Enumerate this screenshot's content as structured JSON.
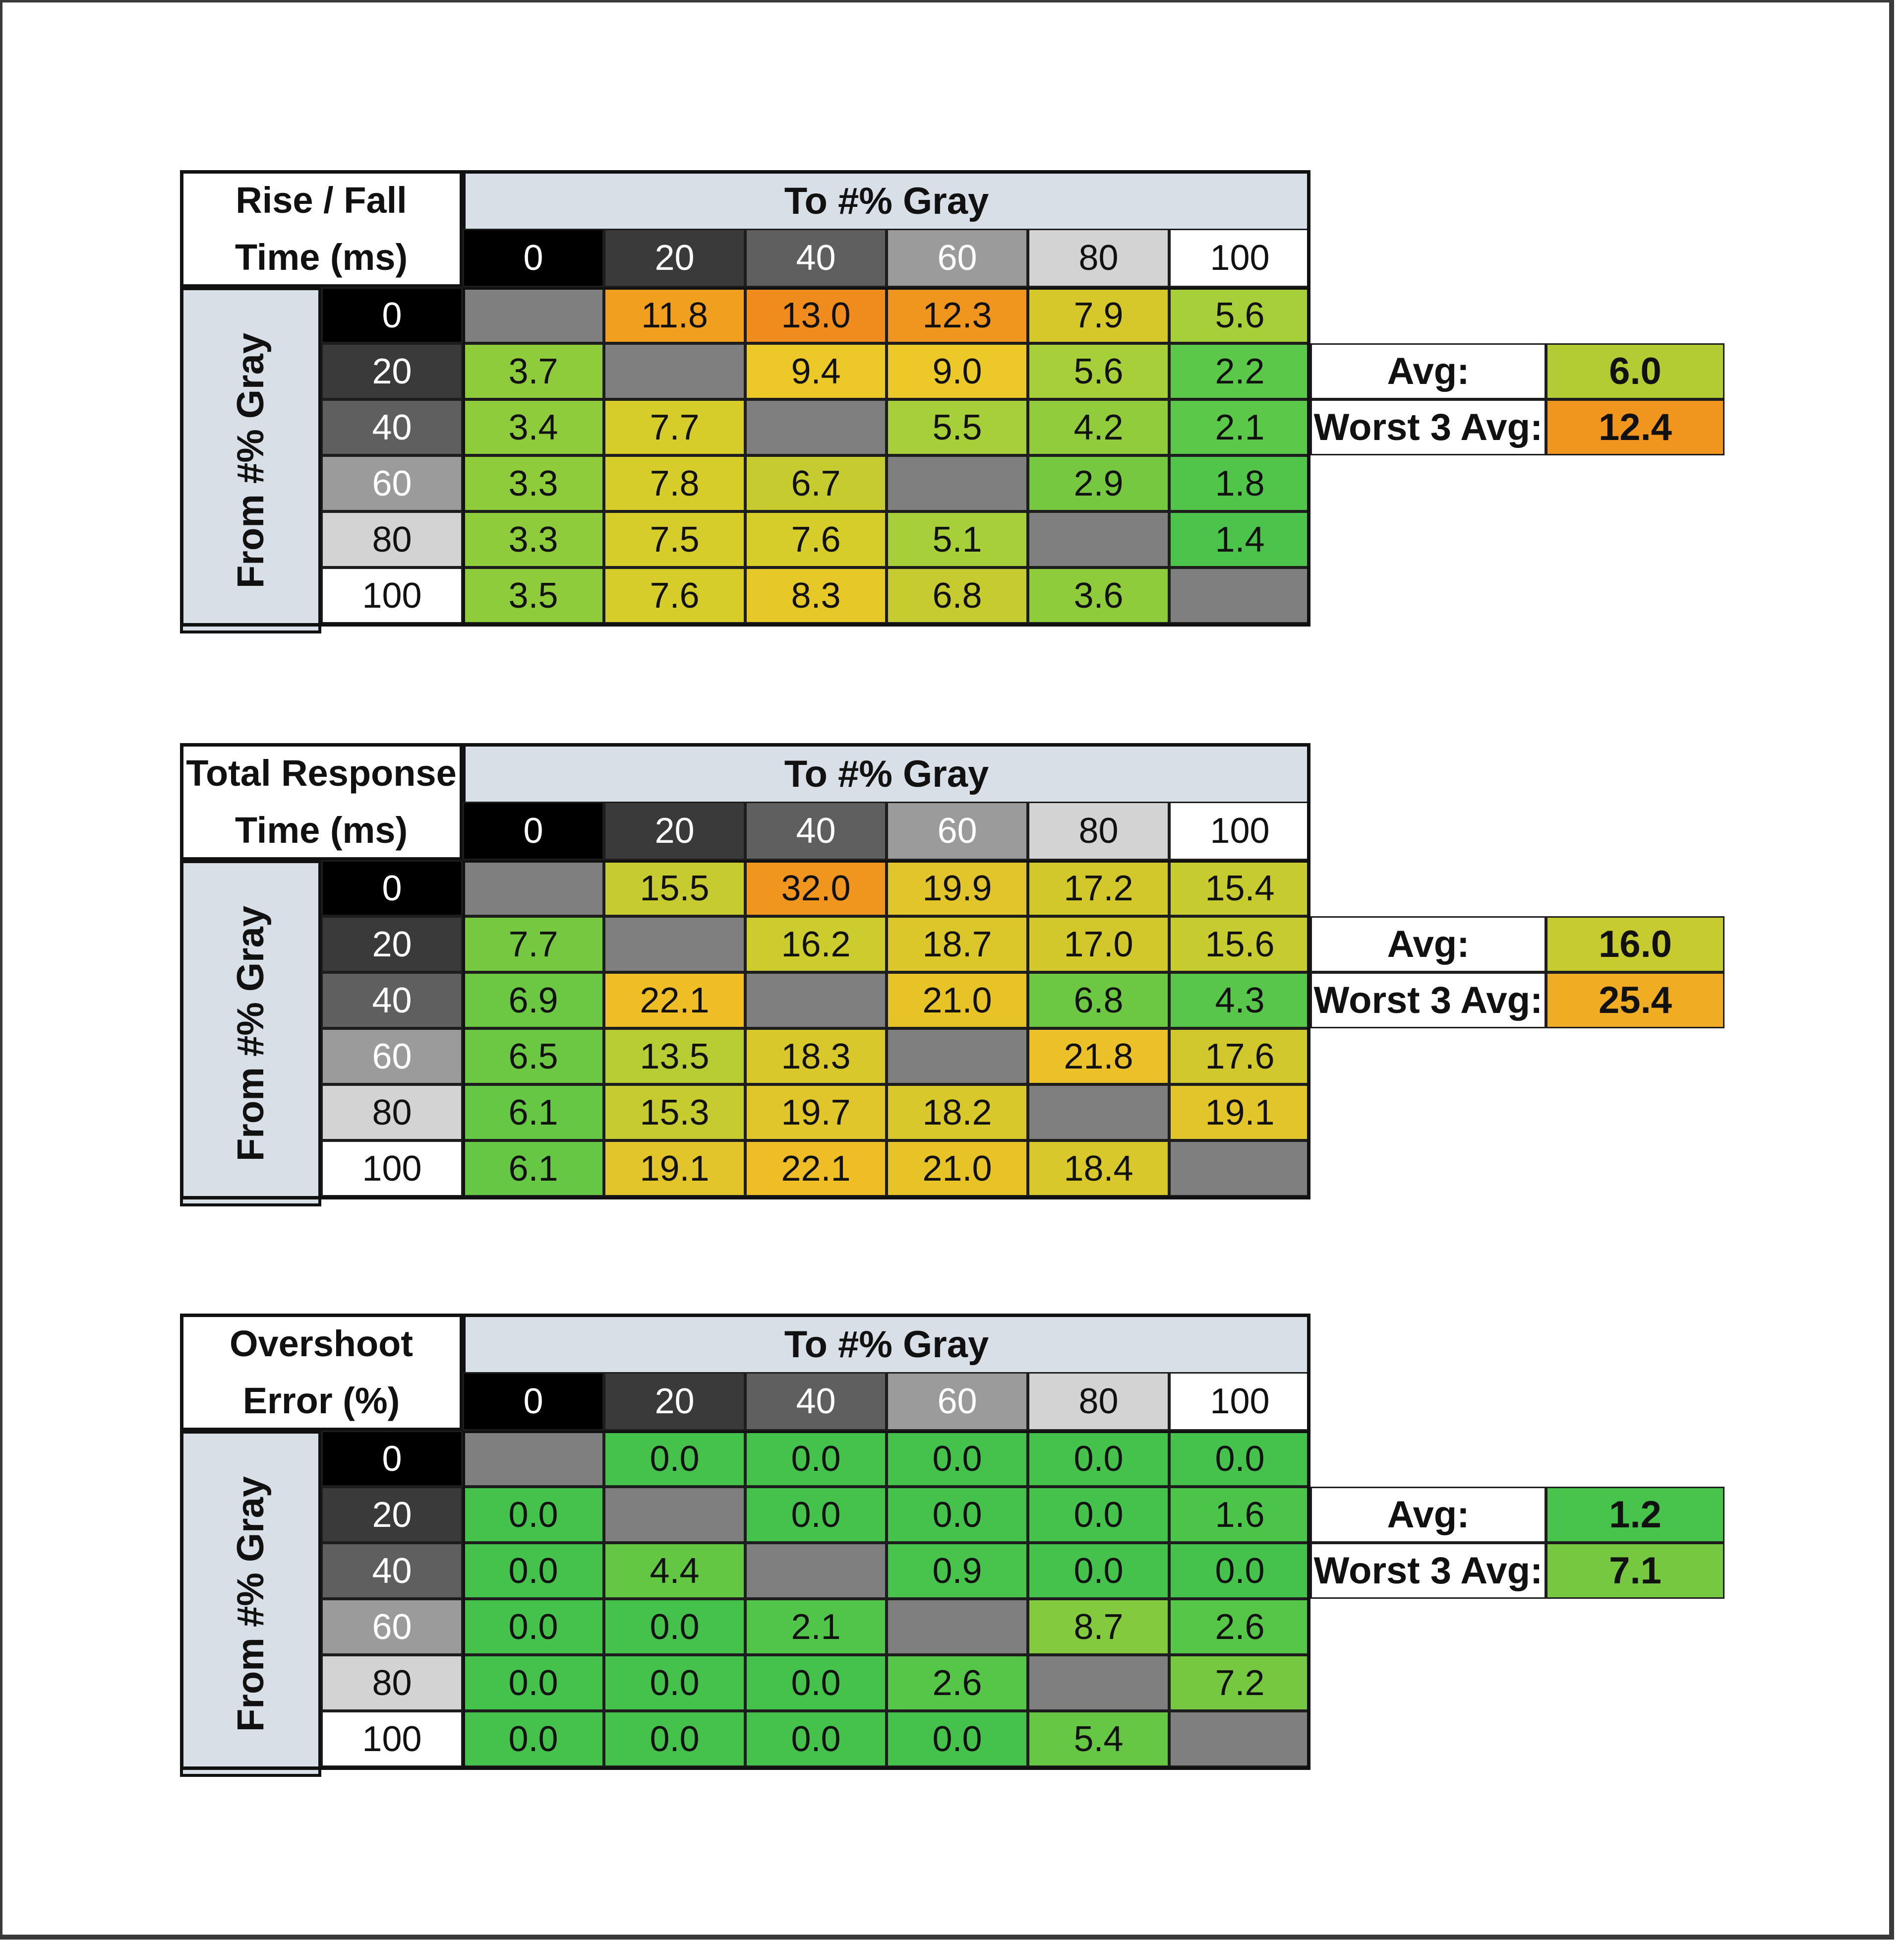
{
  "colors": {
    "header_bg": "#d9dfe6",
    "diagonal": "#7f7f7f",
    "gray_levels": {
      "0": "#000000",
      "20": "#3a3a3a",
      "40": "#5f5f5f",
      "60": "#9b9b9b",
      "80": "#d3d3d3",
      "100": "#ffffff"
    }
  },
  "chart_data": [
    {
      "type": "table",
      "title_lines": [
        "Rise / Fall",
        "Time (ms)"
      ],
      "column_header": "To #% Gray",
      "row_header": "From #% Gray",
      "columns": [
        "0",
        "20",
        "40",
        "60",
        "80",
        "100"
      ],
      "rows": [
        "0",
        "20",
        "40",
        "60",
        "80",
        "100"
      ],
      "values": [
        [
          null,
          11.8,
          13.0,
          12.3,
          7.9,
          5.6
        ],
        [
          3.7,
          null,
          9.4,
          9.0,
          5.6,
          2.2
        ],
        [
          3.4,
          7.7,
          null,
          5.5,
          4.2,
          2.1
        ],
        [
          3.3,
          7.8,
          6.7,
          null,
          2.9,
          1.8
        ],
        [
          3.3,
          7.5,
          7.6,
          5.1,
          null,
          1.4
        ],
        [
          3.5,
          7.6,
          8.3,
          6.8,
          3.6,
          null
        ]
      ],
      "cell_text": [
        [
          "",
          "11.8",
          "13.0",
          "12.3",
          "7.9",
          "5.6"
        ],
        [
          "3.7",
          "",
          "9.4",
          "9.0",
          "5.6",
          "2.2"
        ],
        [
          "3.4",
          "7.7",
          "",
          "5.5",
          "4.2",
          "2.1"
        ],
        [
          "3.3",
          "7.8",
          "6.7",
          "",
          "2.9",
          "1.8"
        ],
        [
          "3.3",
          "7.5",
          "7.6",
          "5.1",
          "",
          "1.4"
        ],
        [
          "3.5",
          "7.6",
          "8.3",
          "6.8",
          "3.6",
          ""
        ]
      ],
      "cell_colors": [
        [
          "#7f7f7f",
          "#f0a01e",
          "#f08c1e",
          "#f0961e",
          "#d6c82a",
          "#a6cf3a"
        ],
        [
          "#8fcc3c",
          "#7f7f7f",
          "#ecc828",
          "#ecc828",
          "#a6cf3a",
          "#5cc84a"
        ],
        [
          "#8fcc3c",
          "#d6cc2a",
          "#7f7f7f",
          "#a6cf3a",
          "#90cc3c",
          "#5cc84a"
        ],
        [
          "#8fcc3c",
          "#d6cc2a",
          "#c6cc30",
          "#7f7f7f",
          "#76c840",
          "#50c54a"
        ],
        [
          "#8fcc3c",
          "#d6cc2a",
          "#d6cc2a",
          "#a6cf3a",
          "#7f7f7f",
          "#4cc44c"
        ],
        [
          "#8fcc3c",
          "#d6cc2a",
          "#e6c828",
          "#c6cc30",
          "#8fcc3c",
          "#7f7f7f"
        ]
      ],
      "summary": [
        {
          "label": "Avg:",
          "value": "6.0",
          "color": "#b4cc34"
        },
        {
          "label": "Worst 3 Avg:",
          "value": "12.4",
          "color": "#f0961e"
        }
      ]
    },
    {
      "type": "table",
      "title_lines": [
        "Total Response",
        "Time (ms)"
      ],
      "column_header": "To #% Gray",
      "row_header": "From #% Gray",
      "columns": [
        "0",
        "20",
        "40",
        "60",
        "80",
        "100"
      ],
      "rows": [
        "0",
        "20",
        "40",
        "60",
        "80",
        "100"
      ],
      "values": [
        [
          null,
          15.5,
          32.0,
          19.9,
          17.2,
          15.4
        ],
        [
          7.7,
          null,
          16.2,
          18.7,
          17.0,
          15.6
        ],
        [
          6.9,
          22.1,
          null,
          21.0,
          6.8,
          4.3
        ],
        [
          6.5,
          13.5,
          18.3,
          null,
          21.8,
          17.6
        ],
        [
          6.1,
          15.3,
          19.7,
          18.2,
          null,
          19.1
        ],
        [
          6.1,
          19.1,
          22.1,
          21.0,
          18.4,
          null
        ]
      ],
      "cell_text": [
        [
          "",
          "15.5",
          "32.0",
          "19.9",
          "17.2",
          "15.4"
        ],
        [
          "7.7",
          "",
          "16.2",
          "18.7",
          "17.0",
          "15.6"
        ],
        [
          "6.9",
          "22.1",
          "",
          "21.0",
          "6.8",
          "4.3"
        ],
        [
          "6.5",
          "13.5",
          "18.3",
          "",
          "21.8",
          "17.6"
        ],
        [
          "6.1",
          "15.3",
          "19.7",
          "18.2",
          "",
          "19.1"
        ],
        [
          "6.1",
          "19.1",
          "22.1",
          "21.0",
          "18.4",
          ""
        ]
      ],
      "cell_colors": [
        [
          "#7f7f7f",
          "#c6cc30",
          "#f0961e",
          "#e2c52a",
          "#d2c82c",
          "#c6cc30"
        ],
        [
          "#76c840",
          "#7f7f7f",
          "#cccc2e",
          "#dcc72a",
          "#d2c82c",
          "#c6cc30"
        ],
        [
          "#6cc842",
          "#efbe26",
          "#7f7f7f",
          "#e8c328",
          "#6cc842",
          "#58c64a"
        ],
        [
          "#6cc842",
          "#b8cc34",
          "#d8c82c",
          "#7f7f7f",
          "#ecc028",
          "#d0c82c"
        ],
        [
          "#66c744",
          "#c6cc30",
          "#e0c62a",
          "#d8c82c",
          "#7f7f7f",
          "#e2c52a"
        ],
        [
          "#66c744",
          "#e2c52a",
          "#efbe26",
          "#e8c328",
          "#d8c82c",
          "#7f7f7f"
        ]
      ],
      "summary": [
        {
          "label": "Avg:",
          "value": "16.0",
          "color": "#c6cc30"
        },
        {
          "label": "Worst 3 Avg:",
          "value": "25.4",
          "color": "#f0ac22"
        }
      ]
    },
    {
      "type": "table",
      "title_lines": [
        "Overshoot",
        "Error (%)"
      ],
      "column_header": "To #% Gray",
      "row_header": "From #% Gray",
      "columns": [
        "0",
        "20",
        "40",
        "60",
        "80",
        "100"
      ],
      "rows": [
        "0",
        "20",
        "40",
        "60",
        "80",
        "100"
      ],
      "values": [
        [
          null,
          0.0,
          0.0,
          0.0,
          0.0,
          0.0
        ],
        [
          0.0,
          null,
          0.0,
          0.0,
          0.0,
          1.6
        ],
        [
          0.0,
          4.4,
          null,
          0.9,
          0.0,
          0.0
        ],
        [
          0.0,
          0.0,
          2.1,
          null,
          8.7,
          2.6
        ],
        [
          0.0,
          0.0,
          0.0,
          2.6,
          null,
          7.2
        ],
        [
          0.0,
          0.0,
          0.0,
          0.0,
          5.4,
          null
        ]
      ],
      "cell_text": [
        [
          "",
          "0.0",
          "0.0",
          "0.0",
          "0.0",
          "0.0"
        ],
        [
          "0.0",
          "",
          "0.0",
          "0.0",
          "0.0",
          "1.6"
        ],
        [
          "0.0",
          "4.4",
          "",
          "0.9",
          "0.0",
          "0.0"
        ],
        [
          "0.0",
          "0.0",
          "2.1",
          "",
          "8.7",
          "2.6"
        ],
        [
          "0.0",
          "0.0",
          "0.0",
          "2.6",
          "",
          "7.2"
        ],
        [
          "0.0",
          "0.0",
          "0.0",
          "0.0",
          "5.4",
          ""
        ]
      ],
      "cell_colors": [
        [
          "#7f7f7f",
          "#44c24c",
          "#44c24c",
          "#44c24c",
          "#44c24c",
          "#44c24c"
        ],
        [
          "#44c24c",
          "#7f7f7f",
          "#44c24c",
          "#44c24c",
          "#44c24c",
          "#4cc44a"
        ],
        [
          "#44c24c",
          "#64c744",
          "#7f7f7f",
          "#48c34c",
          "#44c24c",
          "#44c24c"
        ],
        [
          "#44c24c",
          "#44c24c",
          "#50c54a",
          "#7f7f7f",
          "#84ca3e",
          "#56c648"
        ],
        [
          "#44c24c",
          "#44c24c",
          "#44c24c",
          "#56c648",
          "#7f7f7f",
          "#76c840"
        ],
        [
          "#44c24c",
          "#44c24c",
          "#44c24c",
          "#44c24c",
          "#66c744",
          "#7f7f7f"
        ]
      ],
      "summary": [
        {
          "label": "Avg:",
          "value": "1.2",
          "color": "#48c34c"
        },
        {
          "label": "Worst 3 Avg:",
          "value": "7.1",
          "color": "#76c840"
        }
      ]
    }
  ]
}
